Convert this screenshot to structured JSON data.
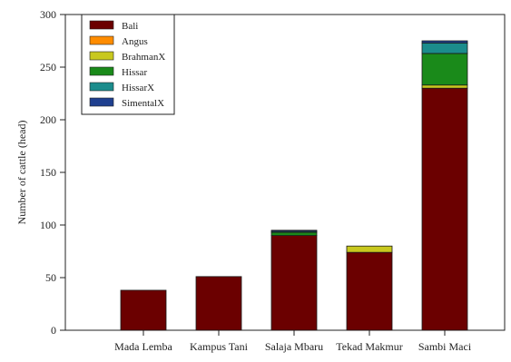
{
  "chart_data": {
    "type": "bar",
    "stacked": true,
    "title": "",
    "xlabel": "",
    "ylabel": "Number of cattle (head)",
    "ylim": [
      0,
      300
    ],
    "yticks": [
      0,
      50,
      100,
      150,
      200,
      250,
      300
    ],
    "categories": [
      "Mada Lemba",
      "Kampus Tani",
      "Salaja Mbaru",
      "Tekad Makmur",
      "Sambi Maci"
    ],
    "series": [
      {
        "name": "Bali",
        "color": "#6b0000",
        "values": [
          38,
          51,
          90,
          74,
          230
        ]
      },
      {
        "name": "Angus",
        "color": "#ff8c00",
        "values": [
          0,
          0,
          0,
          0,
          0
        ]
      },
      {
        "name": "BrahmanX",
        "color": "#c8c81e",
        "values": [
          0,
          0,
          0,
          6,
          3
        ]
      },
      {
        "name": "Hissar",
        "color": "#1a8a1a",
        "values": [
          0,
          0,
          3,
          0,
          30
        ]
      },
      {
        "name": "HissarX",
        "color": "#1b8c8c",
        "values": [
          0,
          0,
          1,
          0,
          10
        ]
      },
      {
        "name": "SimentalX",
        "color": "#1f3f8f",
        "values": [
          0,
          0,
          1,
          0,
          2
        ]
      }
    ],
    "legend": {
      "position": "top-left"
    }
  }
}
